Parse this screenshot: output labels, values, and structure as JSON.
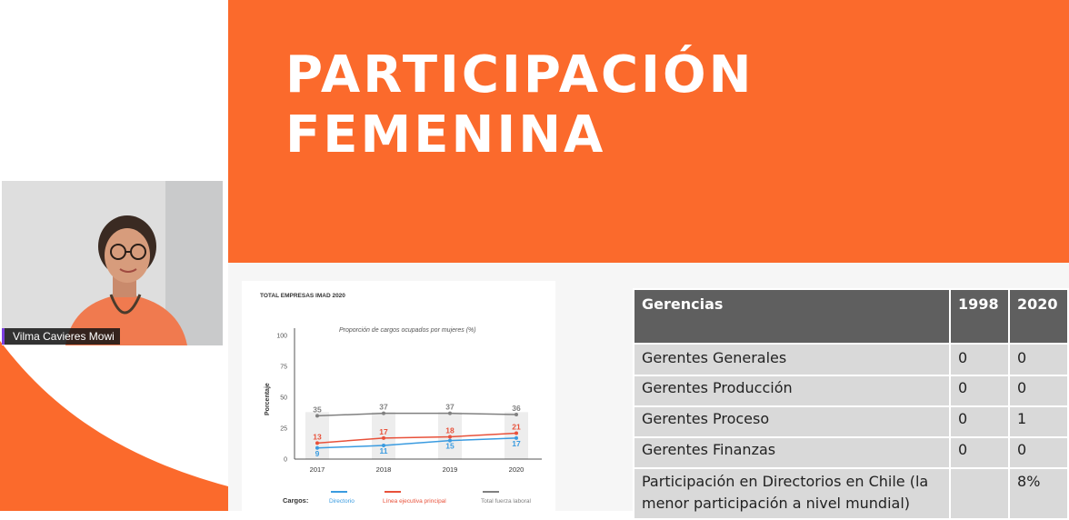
{
  "participant": {
    "name": "Vilma Cavieres Mowi"
  },
  "slide": {
    "title_line1": "PARTICIPACIÓN",
    "title_line2": "FEMENINA"
  },
  "colors": {
    "accent": "#fb6a2c",
    "header_text": "#ffffff",
    "table_header": "#5f5f5f",
    "table_cell": "#d9d9d9"
  },
  "chart_data": {
    "type": "line",
    "title": "TOTAL EMPRESAS IMAD 2020",
    "subtitle": "Proporción de cargos ocupados por mujeres (%)",
    "ylabel": "Porcentaje",
    "xlabel": "",
    "ylim": [
      0,
      100
    ],
    "yticks": [
      0,
      25,
      50,
      75,
      100
    ],
    "categories": [
      "2017",
      "2018",
      "2019",
      "2020"
    ],
    "legend_title": "Cargos:",
    "legend_position": "bottom",
    "series": [
      {
        "name": "Directorio",
        "values": [
          9,
          11,
          15,
          17
        ],
        "color": "#3a9be0"
      },
      {
        "name": "Línea ejecutiva principal",
        "values": [
          13,
          17,
          18,
          21
        ],
        "color": "#e8513a"
      },
      {
        "name": "Total fuerza laboral",
        "values": [
          35,
          37,
          37,
          36
        ],
        "color": "#808080"
      }
    ]
  },
  "table": {
    "headers": [
      "Gerencias",
      "1998",
      "2020"
    ],
    "rows": [
      [
        "Gerentes Generales",
        "0",
        "0"
      ],
      [
        "Gerentes Producción",
        "0",
        "0"
      ],
      [
        "Gerentes Proceso",
        "0",
        "1"
      ],
      [
        "Gerentes Finanzas",
        "0",
        "0"
      ],
      [
        "Participación en Directorios en Chile  (la menor participación a nivel mundial)",
        "",
        "8%"
      ]
    ]
  }
}
